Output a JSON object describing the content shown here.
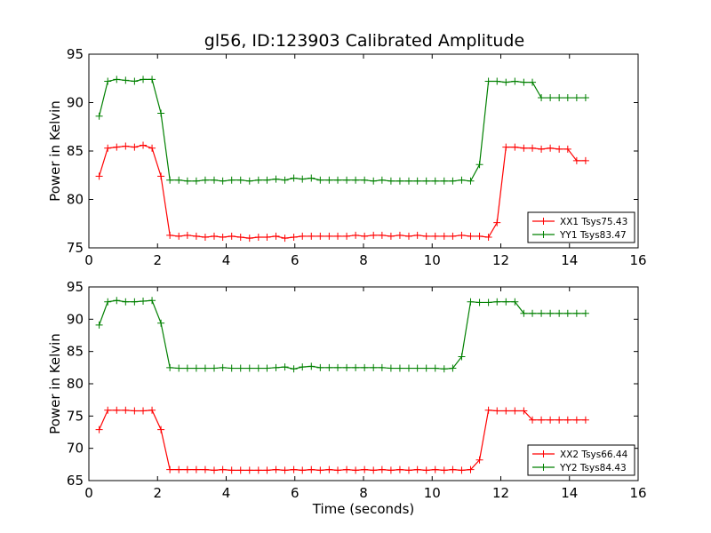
{
  "title": "gl56, ID:123903 Calibrated Amplitude",
  "chart_data": [
    {
      "type": "line",
      "title": "gl56, ID:123903 Calibrated Amplitude",
      "xlabel": "",
      "ylabel": "Power in Kelvin",
      "xlim": [
        0,
        16
      ],
      "ylim": [
        75,
        95
      ],
      "xticks": [
        0,
        2,
        4,
        6,
        8,
        10,
        12,
        14,
        16
      ],
      "yticks": [
        75,
        80,
        85,
        90,
        95
      ],
      "grid": false,
      "legend_position": "lower-right",
      "x": [
        0.3,
        0.55,
        0.81,
        1.07,
        1.33,
        1.58,
        1.84,
        2.1,
        2.36,
        2.62,
        2.87,
        3.13,
        3.39,
        3.65,
        3.9,
        4.16,
        4.42,
        4.68,
        4.94,
        5.19,
        5.45,
        5.71,
        5.97,
        6.22,
        6.48,
        6.74,
        7.0,
        7.25,
        7.51,
        7.77,
        8.03,
        8.29,
        8.54,
        8.8,
        9.06,
        9.32,
        9.57,
        9.83,
        10.09,
        10.35,
        10.6,
        10.86,
        11.12,
        11.38,
        11.64,
        11.89,
        12.15,
        12.41,
        12.67,
        12.92,
        13.18,
        13.44,
        13.7,
        13.95,
        14.21,
        14.47
      ],
      "series": [
        {
          "name": "XX1 Tsys75.43",
          "color": "#ff0000",
          "values": [
            82.4,
            85.3,
            85.4,
            85.5,
            85.4,
            85.6,
            85.3,
            82.4,
            76.3,
            76.2,
            76.3,
            76.2,
            76.1,
            76.2,
            76.1,
            76.2,
            76.1,
            76.0,
            76.1,
            76.1,
            76.2,
            76.0,
            76.1,
            76.2,
            76.2,
            76.2,
            76.2,
            76.2,
            76.2,
            76.3,
            76.2,
            76.3,
            76.3,
            76.2,
            76.3,
            76.2,
            76.3,
            76.2,
            76.2,
            76.2,
            76.2,
            76.3,
            76.2,
            76.2,
            76.1,
            77.6,
            85.4,
            85.4,
            85.3,
            85.3,
            85.2,
            85.3,
            85.2,
            85.2,
            84.0,
            84.0
          ],
          "_note": ""
        },
        {
          "name": "YY1 Tsys83.47",
          "color": "#008000",
          "values": [
            88.6,
            92.2,
            92.4,
            92.3,
            92.2,
            92.4,
            92.4,
            88.9,
            82.0,
            82.0,
            81.9,
            81.9,
            82.0,
            82.0,
            81.9,
            82.0,
            82.0,
            81.9,
            82.0,
            82.0,
            82.1,
            82.0,
            82.2,
            82.1,
            82.2,
            82.0,
            82.0,
            82.0,
            82.0,
            82.0,
            82.0,
            81.9,
            82.0,
            81.9,
            81.9,
            81.9,
            81.9,
            81.9,
            81.9,
            81.9,
            81.9,
            82.0,
            81.9,
            83.6,
            92.2,
            92.2,
            92.1,
            92.2,
            92.1,
            92.1,
            90.5,
            90.5,
            90.5,
            90.5,
            90.5,
            90.5
          ]
        }
      ]
    },
    {
      "type": "line",
      "title": "",
      "xlabel": "Time (seconds)",
      "ylabel": "Power in Kelvin",
      "xlim": [
        0,
        16
      ],
      "ylim": [
        65,
        95
      ],
      "xticks": [
        0,
        2,
        4,
        6,
        8,
        10,
        12,
        14,
        16
      ],
      "yticks": [
        65,
        70,
        75,
        80,
        85,
        90,
        95
      ],
      "grid": false,
      "legend_position": "lower-right",
      "x": [
        0.3,
        0.55,
        0.81,
        1.07,
        1.33,
        1.58,
        1.84,
        2.1,
        2.36,
        2.62,
        2.87,
        3.13,
        3.39,
        3.65,
        3.9,
        4.16,
        4.42,
        4.68,
        4.94,
        5.19,
        5.45,
        5.71,
        5.97,
        6.22,
        6.48,
        6.74,
        7.0,
        7.25,
        7.51,
        7.77,
        8.03,
        8.29,
        8.54,
        8.8,
        9.06,
        9.32,
        9.57,
        9.83,
        10.09,
        10.35,
        10.6,
        10.86,
        11.12,
        11.38,
        11.64,
        11.89,
        12.15,
        12.41,
        12.67,
        12.92,
        13.18,
        13.44,
        13.7,
        13.95,
        14.21,
        14.47
      ],
      "series": [
        {
          "name": "XX2 Tsys66.44",
          "color": "#ff0000",
          "values": [
            72.9,
            75.9,
            75.9,
            75.9,
            75.8,
            75.8,
            75.9,
            72.9,
            66.7,
            66.7,
            66.7,
            66.7,
            66.7,
            66.6,
            66.7,
            66.6,
            66.6,
            66.6,
            66.6,
            66.6,
            66.7,
            66.6,
            66.7,
            66.6,
            66.7,
            66.6,
            66.7,
            66.6,
            66.7,
            66.6,
            66.7,
            66.6,
            66.7,
            66.6,
            66.7,
            66.6,
            66.7,
            66.6,
            66.7,
            66.6,
            66.7,
            66.6,
            66.7,
            68.2,
            75.9,
            75.8,
            75.8,
            75.8,
            75.8,
            74.4,
            74.4,
            74.4,
            74.4,
            74.4,
            74.4,
            74.4
          ]
        },
        {
          "name": "YY2 Tsys84.43",
          "color": "#008000",
          "values": [
            89.1,
            92.7,
            92.9,
            92.7,
            92.7,
            92.8,
            92.9,
            89.4,
            82.5,
            82.4,
            82.4,
            82.4,
            82.4,
            82.4,
            82.5,
            82.4,
            82.4,
            82.4,
            82.4,
            82.4,
            82.5,
            82.6,
            82.3,
            82.6,
            82.7,
            82.5,
            82.5,
            82.5,
            82.5,
            82.5,
            82.5,
            82.5,
            82.5,
            82.4,
            82.4,
            82.4,
            82.4,
            82.4,
            82.4,
            82.3,
            82.4,
            84.2,
            92.7,
            92.6,
            92.6,
            92.7,
            92.7,
            92.7,
            90.9,
            90.9,
            90.9,
            90.9,
            90.9,
            90.9,
            90.9,
            90.9
          ]
        }
      ]
    }
  ]
}
